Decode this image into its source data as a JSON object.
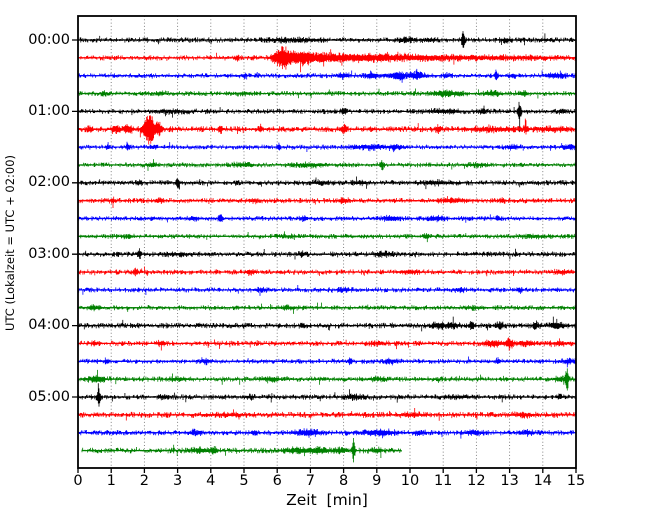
{
  "figure": {
    "background": "#ffffff",
    "axis_color": "#000000",
    "grid_color": "#777777",
    "tick_label_color": "#000000"
  },
  "chart_data": {
    "type": "line",
    "subtype": "helicorder_seismogram_dayplot",
    "title": "",
    "xlabel": "Zeit  [min]",
    "ylabel": "UTC (Lokalzeit = UTC + 02:00)",
    "xlim": [
      0,
      15
    ],
    "minutes_per_line": 15,
    "grid": {
      "vertical": true,
      "horizontal": false,
      "style": "dotted"
    },
    "legend": "none",
    "x_ticks": [
      "0",
      "1",
      "2",
      "3",
      "4",
      "5",
      "6",
      "7",
      "8",
      "9",
      "10",
      "11",
      "12",
      "13",
      "14",
      "15"
    ],
    "y_ticks": [
      {
        "label": "00:00",
        "row": 0
      },
      {
        "label": "01:00",
        "row": 4
      },
      {
        "label": "02:00",
        "row": 8
      },
      {
        "label": "03:00",
        "row": 12
      },
      {
        "label": "04:00",
        "row": 16
      },
      {
        "label": "05:00",
        "row": 20
      }
    ],
    "color_cycle": [
      "#000000",
      "#ff0000",
      "#0000ff",
      "#008000"
    ],
    "rows": [
      {
        "time": "00:00",
        "color": "#000000",
        "start": 0,
        "end": 15,
        "noise": 1.5,
        "seed": 101,
        "events": [
          {
            "t": 6.2,
            "w": 0.5,
            "a": 1.0
          },
          {
            "t": 7.0,
            "w": 0.4,
            "a": 0.9
          },
          {
            "t": 9.9,
            "w": 0.25,
            "a": 1.6
          },
          {
            "t": 10.6,
            "w": 0.2,
            "a": 1.2
          },
          {
            "t": 11.6,
            "w": 0.045,
            "a": 10
          },
          {
            "t": 12.9,
            "w": 0.15,
            "a": 1.2
          },
          {
            "t": 14.1,
            "w": 0.1,
            "a": 1.0
          }
        ]
      },
      {
        "time": "00:15",
        "color": "#ff0000",
        "start": 0,
        "end": 15,
        "noise": 1.5,
        "seed": 102,
        "events": [
          {
            "t": 4.8,
            "w": 0.05,
            "a": 2.5
          },
          {
            "t": 6.15,
            "w": 0.25,
            "a": 9
          },
          {
            "t": 6.7,
            "w": 0.4,
            "a": 5
          },
          {
            "t": 7.5,
            "w": 0.7,
            "a": 3
          },
          {
            "t": 8.8,
            "w": 1.0,
            "a": 2.2
          },
          {
            "t": 10.5,
            "w": 1.5,
            "a": 1.4
          },
          {
            "t": 13.0,
            "w": 2.0,
            "a": 1.0
          }
        ]
      },
      {
        "time": "00:30",
        "color": "#0000ff",
        "start": 0,
        "end": 15,
        "noise": 1.4,
        "seed": 103,
        "events": [
          {
            "t": 5.0,
            "w": 0.08,
            "a": 1.5
          },
          {
            "t": 8.0,
            "w": 0.2,
            "a": 1.8
          },
          {
            "t": 8.85,
            "w": 0.2,
            "a": 2.2
          },
          {
            "t": 9.6,
            "w": 0.25,
            "a": 3.2
          },
          {
            "t": 10.2,
            "w": 0.25,
            "a": 3.0
          },
          {
            "t": 11.1,
            "w": 0.1,
            "a": 1.5
          },
          {
            "t": 12.6,
            "w": 0.05,
            "a": 4.0
          },
          {
            "t": 13.1,
            "w": 0.1,
            "a": 1.5
          },
          {
            "t": 14.4,
            "w": 0.3,
            "a": 2.0
          }
        ]
      },
      {
        "time": "00:45",
        "color": "#008000",
        "start": 0,
        "end": 15,
        "noise": 1.4,
        "seed": 104,
        "events": [
          {
            "t": 0.8,
            "w": 0.1,
            "a": 1.5
          },
          {
            "t": 2.5,
            "w": 0.15,
            "a": 1.2
          },
          {
            "t": 5.0,
            "w": 0.3,
            "a": 0.9
          },
          {
            "t": 11.1,
            "w": 0.4,
            "a": 2.2
          },
          {
            "t": 12.45,
            "w": 0.2,
            "a": 2.0
          },
          {
            "t": 13.4,
            "w": 0.15,
            "a": 1.5
          }
        ]
      },
      {
        "time": "01:00",
        "color": "#000000",
        "start": 0,
        "end": 15,
        "noise": 1.5,
        "seed": 105,
        "events": [
          {
            "t": 2.8,
            "w": 0.5,
            "a": 1.0
          },
          {
            "t": 8.0,
            "w": 0.08,
            "a": 2.0
          },
          {
            "t": 11.0,
            "w": 0.5,
            "a": 1.2
          },
          {
            "t": 12.2,
            "w": 0.1,
            "a": 2.0
          },
          {
            "t": 13.3,
            "w": 0.05,
            "a": 10
          },
          {
            "t": 14.6,
            "w": 0.1,
            "a": 1.5
          }
        ]
      },
      {
        "time": "01:15",
        "color": "#ff0000",
        "start": 0,
        "end": 15,
        "noise": 1.7,
        "seed": 106,
        "events": [
          {
            "t": 0.35,
            "w": 0.1,
            "a": 2.0
          },
          {
            "t": 1.15,
            "w": 0.12,
            "a": 2.8
          },
          {
            "t": 1.5,
            "w": 0.15,
            "a": 2.8
          },
          {
            "t": 2.15,
            "w": 0.17,
            "a": 15
          },
          {
            "t": 2.45,
            "w": 0.1,
            "a": 5
          },
          {
            "t": 4.3,
            "w": 0.06,
            "a": 3.5
          },
          {
            "t": 5.5,
            "w": 0.05,
            "a": 2.5
          },
          {
            "t": 8.0,
            "w": 0.07,
            "a": 3.5
          },
          {
            "t": 10.85,
            "w": 0.07,
            "a": 3.0
          },
          {
            "t": 12.5,
            "w": 0.8,
            "a": 1.2
          },
          {
            "t": 13.5,
            "w": 0.06,
            "a": 3.5
          },
          {
            "t": 14.3,
            "w": 0.5,
            "a": 1.3
          }
        ]
      },
      {
        "time": "01:30",
        "color": "#0000ff",
        "start": 0,
        "end": 15,
        "noise": 1.4,
        "seed": 107,
        "events": [
          {
            "t": 0.9,
            "w": 0.06,
            "a": 2.0
          },
          {
            "t": 1.5,
            "w": 0.05,
            "a": 3.0
          },
          {
            "t": 2.3,
            "w": 0.1,
            "a": 1.5
          },
          {
            "t": 6.05,
            "w": 0.05,
            "a": 3.5
          },
          {
            "t": 8.8,
            "w": 0.5,
            "a": 1.6
          },
          {
            "t": 9.6,
            "w": 0.2,
            "a": 1.8
          },
          {
            "t": 13.1,
            "w": 0.2,
            "a": 1.5
          },
          {
            "t": 14.8,
            "w": 0.2,
            "a": 1.8
          }
        ]
      },
      {
        "time": "01:45",
        "color": "#008000",
        "start": 0,
        "end": 15,
        "noise": 1.4,
        "seed": 108,
        "events": [
          {
            "t": 2.2,
            "w": 0.15,
            "a": 1.4
          },
          {
            "t": 5.0,
            "w": 0.25,
            "a": 1.5
          },
          {
            "t": 7.0,
            "w": 0.5,
            "a": 1.2
          },
          {
            "t": 9.15,
            "w": 0.05,
            "a": 4.5
          },
          {
            "t": 12.0,
            "w": 0.3,
            "a": 1.0
          }
        ]
      },
      {
        "time": "02:00",
        "color": "#000000",
        "start": 0,
        "end": 15,
        "noise": 1.5,
        "seed": 109,
        "events": [
          {
            "t": 1.85,
            "w": 0.08,
            "a": 1.6
          },
          {
            "t": 3.0,
            "w": 0.05,
            "a": 4.5
          },
          {
            "t": 7.3,
            "w": 0.3,
            "a": 1.0
          },
          {
            "t": 8.5,
            "w": 0.2,
            "a": 1.2
          },
          {
            "t": 10.8,
            "w": 0.5,
            "a": 1.2
          }
        ]
      },
      {
        "time": "02:15",
        "color": "#ff0000",
        "start": 0,
        "end": 15,
        "noise": 1.5,
        "seed": 110,
        "events": [
          {
            "t": 1.05,
            "w": 0.08,
            "a": 1.8
          },
          {
            "t": 2.45,
            "w": 0.12,
            "a": 1.6
          },
          {
            "t": 5.3,
            "w": 0.2,
            "a": 1.2
          },
          {
            "t": 8.0,
            "w": 0.15,
            "a": 1.8
          },
          {
            "t": 11.3,
            "w": 0.4,
            "a": 1.4
          },
          {
            "t": 12.8,
            "w": 0.06,
            "a": 2.0
          }
        ]
      },
      {
        "time": "02:30",
        "color": "#0000ff",
        "start": 0,
        "end": 15,
        "noise": 1.4,
        "seed": 111,
        "events": [
          {
            "t": 3.5,
            "w": 0.15,
            "a": 1.4
          },
          {
            "t": 4.3,
            "w": 0.06,
            "a": 3.5
          },
          {
            "t": 6.8,
            "w": 0.1,
            "a": 1.6
          },
          {
            "t": 9.4,
            "w": 0.25,
            "a": 2.0
          },
          {
            "t": 10.8,
            "w": 0.2,
            "a": 1.6
          },
          {
            "t": 12.65,
            "w": 0.05,
            "a": 2.5
          }
        ]
      },
      {
        "time": "02:45",
        "color": "#008000",
        "start": 0,
        "end": 15,
        "noise": 1.4,
        "seed": 112,
        "events": [
          {
            "t": 1.5,
            "w": 0.2,
            "a": 1.0
          },
          {
            "t": 6.3,
            "w": 0.3,
            "a": 0.9
          },
          {
            "t": 10.5,
            "w": 0.07,
            "a": 2.2
          },
          {
            "t": 13.8,
            "w": 0.4,
            "a": 1.0
          }
        ]
      },
      {
        "time": "03:00",
        "color": "#000000",
        "start": 0,
        "end": 15,
        "noise": 1.5,
        "seed": 113,
        "events": [
          {
            "t": 1.85,
            "w": 0.05,
            "a": 4.0
          },
          {
            "t": 3.0,
            "w": 0.5,
            "a": 0.9
          },
          {
            "t": 6.75,
            "w": 0.1,
            "a": 1.8
          },
          {
            "t": 9.2,
            "w": 0.3,
            "a": 1.3
          }
        ]
      },
      {
        "time": "03:15",
        "color": "#ff0000",
        "start": 0,
        "end": 15,
        "noise": 1.5,
        "seed": 114,
        "events": [
          {
            "t": 1.75,
            "w": 0.06,
            "a": 2.8
          },
          {
            "t": 5.2,
            "w": 0.15,
            "a": 1.6
          },
          {
            "t": 10.0,
            "w": 0.3,
            "a": 1.2
          },
          {
            "t": 14.6,
            "w": 0.25,
            "a": 1.2
          }
        ]
      },
      {
        "time": "03:30",
        "color": "#0000ff",
        "start": 0,
        "end": 15,
        "noise": 1.4,
        "seed": 115,
        "events": [
          {
            "t": 5.5,
            "w": 0.2,
            "a": 1.3
          },
          {
            "t": 8.0,
            "w": 0.2,
            "a": 1.2
          },
          {
            "t": 11.5,
            "w": 0.12,
            "a": 1.8
          },
          {
            "t": 13.3,
            "w": 0.08,
            "a": 1.8
          }
        ]
      },
      {
        "time": "03:45",
        "color": "#008000",
        "start": 0,
        "end": 15,
        "noise": 1.4,
        "seed": 116,
        "events": [
          {
            "t": 0.5,
            "w": 0.2,
            "a": 1.5
          },
          {
            "t": 6.3,
            "w": 0.25,
            "a": 1.1
          },
          {
            "t": 12.0,
            "w": 0.3,
            "a": 0.9
          }
        ]
      },
      {
        "time": "04:00",
        "color": "#000000",
        "start": 0,
        "end": 15,
        "noise": 1.6,
        "seed": 117,
        "events": [
          {
            "t": 6.75,
            "w": 0.06,
            "a": 2.5
          },
          {
            "t": 10.9,
            "w": 0.2,
            "a": 2.2
          },
          {
            "t": 11.3,
            "w": 0.15,
            "a": 2.0
          },
          {
            "t": 11.85,
            "w": 0.08,
            "a": 3.2
          },
          {
            "t": 12.7,
            "w": 0.12,
            "a": 2.8
          },
          {
            "t": 13.8,
            "w": 0.1,
            "a": 2.2
          },
          {
            "t": 14.4,
            "w": 0.25,
            "a": 2.2
          }
        ]
      },
      {
        "time": "04:15",
        "color": "#ff0000",
        "start": 0,
        "end": 15,
        "noise": 1.5,
        "seed": 118,
        "events": [
          {
            "t": 0.5,
            "w": 0.1,
            "a": 1.5
          },
          {
            "t": 2.5,
            "w": 0.15,
            "a": 1.3
          },
          {
            "t": 9.0,
            "w": 0.3,
            "a": 1.0
          },
          {
            "t": 12.5,
            "w": 0.3,
            "a": 2.2
          },
          {
            "t": 13.0,
            "w": 0.1,
            "a": 4.5
          },
          {
            "t": 13.5,
            "w": 0.3,
            "a": 1.6
          },
          {
            "t": 14.5,
            "w": 0.3,
            "a": 1.2
          }
        ]
      },
      {
        "time": "04:30",
        "color": "#0000ff",
        "start": 0,
        "end": 15,
        "noise": 1.4,
        "seed": 119,
        "events": [
          {
            "t": 0.85,
            "w": 0.06,
            "a": 2.0
          },
          {
            "t": 3.85,
            "w": 0.15,
            "a": 1.7
          },
          {
            "t": 8.2,
            "w": 0.05,
            "a": 3.2
          },
          {
            "t": 9.4,
            "w": 0.2,
            "a": 1.5
          },
          {
            "t": 12.65,
            "w": 0.06,
            "a": 2.2
          },
          {
            "t": 14.8,
            "w": 0.2,
            "a": 1.6
          }
        ]
      },
      {
        "time": "04:45",
        "color": "#008000",
        "start": 0,
        "end": 15,
        "noise": 1.5,
        "seed": 120,
        "events": [
          {
            "t": 0.55,
            "w": 0.25,
            "a": 2.2
          },
          {
            "t": 3.0,
            "w": 0.3,
            "a": 1.0
          },
          {
            "t": 5.8,
            "w": 0.3,
            "a": 1.3
          },
          {
            "t": 9.0,
            "w": 0.3,
            "a": 1.0
          },
          {
            "t": 14.5,
            "w": 0.15,
            "a": 1.5
          },
          {
            "t": 14.73,
            "w": 0.045,
            "a": 13
          }
        ]
      },
      {
        "time": "05:00",
        "color": "#000000",
        "start": 0,
        "end": 15,
        "noise": 1.5,
        "seed": 121,
        "events": [
          {
            "t": 0.62,
            "w": 0.05,
            "a": 9.0
          },
          {
            "t": 2.6,
            "w": 0.15,
            "a": 1.3
          },
          {
            "t": 5.2,
            "w": 0.1,
            "a": 1.4
          },
          {
            "t": 8.3,
            "w": 0.3,
            "a": 1.5
          },
          {
            "t": 11.5,
            "w": 0.3,
            "a": 1.0
          },
          {
            "t": 14.5,
            "w": 0.08,
            "a": 1.6
          }
        ]
      },
      {
        "time": "05:15",
        "color": "#ff0000",
        "start": 0,
        "end": 15,
        "noise": 1.7,
        "seed": 122,
        "events": [
          {
            "t": 4.5,
            "w": 0.5,
            "a": 0.9
          },
          {
            "t": 10.0,
            "w": 0.3,
            "a": 1.1
          },
          {
            "t": 13.4,
            "w": 0.25,
            "a": 1.2
          }
        ]
      },
      {
        "time": "05:30",
        "color": "#0000ff",
        "start": 0,
        "end": 15,
        "noise": 1.5,
        "seed": 123,
        "events": [
          {
            "t": 3.55,
            "w": 0.2,
            "a": 1.8
          },
          {
            "t": 5.3,
            "w": 0.1,
            "a": 1.5
          },
          {
            "t": 6.9,
            "w": 0.4,
            "a": 2.2
          },
          {
            "t": 9.1,
            "w": 0.45,
            "a": 2.2
          },
          {
            "t": 10.3,
            "w": 0.2,
            "a": 1.4
          },
          {
            "t": 11.9,
            "w": 0.3,
            "a": 1.4
          },
          {
            "t": 13.5,
            "w": 0.25,
            "a": 1.4
          }
        ]
      },
      {
        "time": "05:45",
        "color": "#008000",
        "start": 0.12,
        "end": 9.75,
        "noise": 1.6,
        "seed": 124,
        "events": [
          {
            "t": 3.7,
            "w": 0.3,
            "a": 1.6
          },
          {
            "t": 4.1,
            "w": 0.1,
            "a": 2.6
          },
          {
            "t": 6.6,
            "w": 0.4,
            "a": 1.8
          },
          {
            "t": 7.3,
            "w": 0.3,
            "a": 2.0
          },
          {
            "t": 7.9,
            "w": 0.2,
            "a": 1.8
          },
          {
            "t": 8.3,
            "w": 0.04,
            "a": 12
          },
          {
            "t": 9.0,
            "w": 0.2,
            "a": 1.5
          }
        ]
      }
    ]
  }
}
